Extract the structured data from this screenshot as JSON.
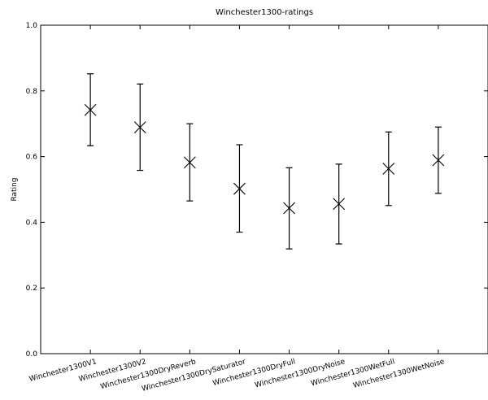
{
  "chart_data": {
    "type": "errorbar",
    "title": "Winchester1300-ratings",
    "xlabel": "",
    "ylabel": "Rating",
    "ylim": [
      0.0,
      1.0
    ],
    "yticks": [
      "0.0",
      "0.2",
      "0.4",
      "0.6",
      "0.8",
      "1.0"
    ],
    "grid": false,
    "marker": "x",
    "color": "#000000",
    "categories": [
      "Winchester1300V1",
      "Winchester1300V2",
      "Winchester1300DryReverb",
      "Winchester1300DrySaturator",
      "Winchester1300DryFull",
      "Winchester1300DryNoise",
      "Winchester1300WetFull",
      "Winchester1300WetNoise"
    ],
    "values": [
      0.742,
      0.689,
      0.582,
      0.502,
      0.443,
      0.456,
      0.563,
      0.589
    ],
    "lower": [
      0.633,
      0.558,
      0.465,
      0.37,
      0.319,
      0.334,
      0.451,
      0.488
    ],
    "upper": [
      0.852,
      0.821,
      0.7,
      0.636,
      0.566,
      0.577,
      0.675,
      0.69
    ]
  }
}
